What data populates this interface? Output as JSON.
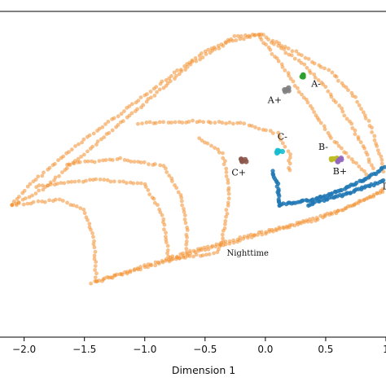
{
  "chart_data": {
    "type": "scatter",
    "xlabel": "Dimension 1",
    "ylabel": "",
    "xlim": [
      -2.2,
      1.0
    ],
    "ylim": [
      -1.6,
      1.6
    ],
    "xticks": [
      -2.0,
      -1.5,
      -1.0,
      -0.5,
      0.0,
      0.5,
      1.0
    ],
    "xtick_labels": [
      "−2.0",
      "−1.5",
      "−1.0",
      "−0.5",
      "0.0",
      "0.5",
      "1"
    ],
    "grid": false,
    "colors": {
      "daytime": "#f28e2b",
      "nighttime_track": "#1f77b4",
      "A_minus": "#2ca02c",
      "A_plus": "#7f7f7f",
      "B_minus": "#bcbd22",
      "B_plus": "#9467bd",
      "C_minus": "#17becf",
      "C_plus": "#8c564b"
    },
    "trajectories": [
      {
        "series": "orange",
        "path": [
          [
            -2.1,
            -0.3
          ],
          [
            -1.95,
            -0.1
          ],
          [
            -1.6,
            0.25
          ],
          [
            -1.2,
            0.6
          ],
          [
            -0.8,
            0.95
          ],
          [
            -0.5,
            1.2
          ],
          [
            -0.25,
            1.35
          ],
          [
            -0.05,
            1.38
          ]
        ]
      },
      {
        "series": "orange",
        "path": [
          [
            -2.1,
            -0.3
          ],
          [
            -1.85,
            -0.15
          ],
          [
            -1.5,
            0.2
          ],
          [
            -1.15,
            0.55
          ],
          [
            -0.85,
            0.85
          ],
          [
            -0.6,
            1.1
          ],
          [
            -0.3,
            1.3
          ],
          [
            0.0,
            1.38
          ]
        ]
      },
      {
        "series": "orange",
        "path": [
          [
            -2.1,
            -0.3
          ],
          [
            -1.7,
            -0.25
          ],
          [
            -1.5,
            -0.35
          ],
          [
            -1.42,
            -0.65
          ],
          [
            -1.4,
            -1.05
          ]
        ]
      },
      {
        "series": "orange",
        "path": [
          [
            -1.4,
            -1.05
          ],
          [
            -1.0,
            -0.9
          ],
          [
            -0.5,
            -0.72
          ],
          [
            0.0,
            -0.56
          ],
          [
            0.4,
            -0.44
          ],
          [
            0.7,
            -0.32
          ],
          [
            0.9,
            -0.2
          ],
          [
            1.0,
            -0.12
          ]
        ]
      },
      {
        "series": "orange",
        "path": [
          [
            -1.45,
            -1.07
          ],
          [
            -1.0,
            -0.92
          ],
          [
            -0.5,
            -0.74
          ],
          [
            0.0,
            -0.58
          ],
          [
            0.5,
            -0.42
          ],
          [
            0.85,
            -0.24
          ],
          [
            1.0,
            -0.15
          ]
        ]
      },
      {
        "series": "orange",
        "path": [
          [
            -0.05,
            1.38
          ],
          [
            0.25,
            1.2
          ],
          [
            0.55,
            1.0
          ],
          [
            0.75,
            0.75
          ],
          [
            0.88,
            0.45
          ],
          [
            0.95,
            0.2
          ],
          [
            0.98,
            0.0
          ]
        ]
      },
      {
        "series": "orange",
        "path": [
          [
            0.05,
            1.3
          ],
          [
            0.3,
            1.1
          ],
          [
            0.5,
            0.85
          ],
          [
            0.68,
            0.55
          ],
          [
            0.82,
            0.25
          ],
          [
            0.9,
            0.02
          ]
        ]
      },
      {
        "series": "orange",
        "path": [
          [
            -0.05,
            1.35
          ],
          [
            0.15,
            1.05
          ],
          [
            0.35,
            0.7
          ],
          [
            0.55,
            0.35
          ],
          [
            0.75,
            0.1
          ],
          [
            0.88,
            -0.05
          ]
        ]
      },
      {
        "series": "orange",
        "path": [
          [
            -1.05,
            0.5
          ],
          [
            -0.6,
            0.52
          ],
          [
            -0.2,
            0.5
          ],
          [
            0.1,
            0.4
          ],
          [
            0.2,
            0.2
          ],
          [
            0.2,
            0.0
          ]
        ]
      },
      {
        "series": "orange",
        "path": [
          [
            -1.65,
            0.1
          ],
          [
            -1.2,
            0.15
          ],
          [
            -0.85,
            0.08
          ],
          [
            -0.7,
            -0.2
          ],
          [
            -0.65,
            -0.55
          ],
          [
            -0.65,
            -0.8
          ]
        ]
      },
      {
        "series": "orange",
        "path": [
          [
            -1.9,
            -0.12
          ],
          [
            -1.4,
            -0.05
          ],
          [
            -1.0,
            -0.1
          ],
          [
            -0.85,
            -0.4
          ],
          [
            -0.8,
            -0.85
          ]
        ]
      },
      {
        "series": "orange",
        "path": [
          [
            -0.55,
            0.35
          ],
          [
            -0.35,
            0.2
          ],
          [
            -0.3,
            -0.2
          ],
          [
            -0.35,
            -0.6
          ],
          [
            -0.4,
            -0.8
          ]
        ]
      },
      {
        "series": "orange",
        "path": [
          [
            -0.8,
            -0.85
          ],
          [
            -0.6,
            -0.8
          ],
          [
            -0.4,
            -0.78
          ]
        ]
      },
      {
        "series": "blue",
        "path": [
          [
            0.12,
            -0.3
          ],
          [
            0.4,
            -0.25
          ],
          [
            0.7,
            -0.12
          ],
          [
            0.9,
            0.0
          ],
          [
            1.0,
            0.08
          ]
        ]
      },
      {
        "series": "blue",
        "path": [
          [
            0.12,
            -0.3
          ],
          [
            0.1,
            -0.1
          ],
          [
            0.05,
            0.05
          ]
        ]
      },
      {
        "series": "blue",
        "path": [
          [
            0.35,
            -0.3
          ],
          [
            0.65,
            -0.2
          ],
          [
            0.9,
            -0.1
          ],
          [
            1.0,
            -0.05
          ]
        ]
      }
    ],
    "clusters": [
      {
        "name": "A-",
        "x": 0.3,
        "y": 0.97,
        "color_key": "A_minus"
      },
      {
        "name": "A+",
        "x": 0.18,
        "y": 0.83,
        "color_key": "A_plus"
      },
      {
        "name": "C-",
        "x": 0.12,
        "y": 0.22,
        "color_key": "C_minus"
      },
      {
        "name": "C+",
        "x": -0.18,
        "y": 0.13,
        "color_key": "C_plus"
      },
      {
        "name": "B-",
        "x": 0.57,
        "y": 0.15,
        "color_key": "B_minus"
      },
      {
        "name": "B+",
        "x": 0.62,
        "y": 0.14,
        "color_key": "B_plus"
      }
    ],
    "annotations": [
      {
        "text": "A-",
        "x": 0.38,
        "y": 0.86
      },
      {
        "text": "A+",
        "x": 0.02,
        "y": 0.7
      },
      {
        "text": "C-",
        "x": 0.1,
        "y": 0.34
      },
      {
        "text": "C+",
        "x": -0.28,
        "y": -0.01
      },
      {
        "text": "B-",
        "x": 0.44,
        "y": 0.24
      },
      {
        "text": "B+",
        "x": 0.56,
        "y": 0.0
      },
      {
        "text": "D",
        "x": 0.97,
        "y": -0.15
      },
      {
        "text": "Nighttime",
        "x": -0.32,
        "y": -0.8
      }
    ]
  }
}
